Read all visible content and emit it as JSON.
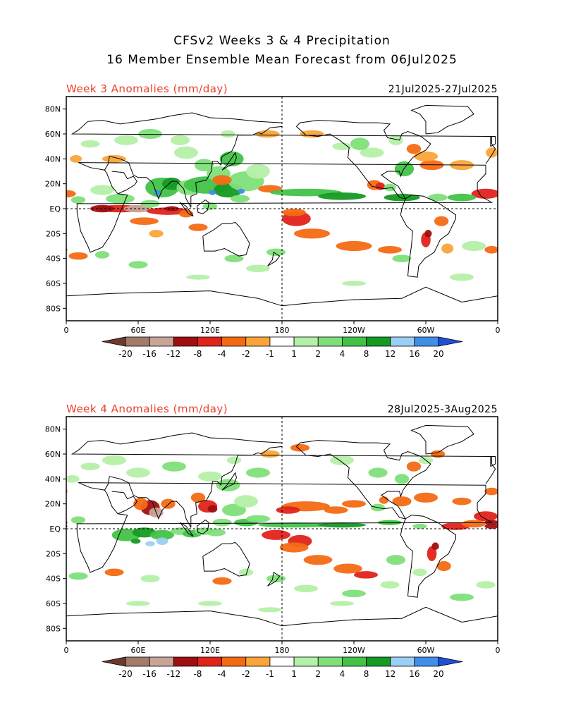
{
  "header": {
    "title_line1": "CFSv2 Weeks 3 & 4 Precipitation",
    "title_line2": "16 Member Ensemble Mean Forecast from 06Jul2025"
  },
  "panels": [
    {
      "label": "Week 3 Anomalies (mm/day)",
      "dates": "21Jul2025-27Jul2025"
    },
    {
      "label": "Week 4 Anomalies (mm/day)",
      "dates": "28Jul2025-3Aug2025"
    }
  ],
  "axes": {
    "lat_labels": [
      "80N",
      "60N",
      "40N",
      "20N",
      "EQ",
      "20S",
      "40S",
      "60S",
      "80S"
    ],
    "lon_labels": [
      "0",
      "60E",
      "120E",
      "180",
      "120W",
      "60W",
      "0"
    ]
  },
  "colorbar": {
    "labels": [
      "-20",
      "-16",
      "-12",
      "-8",
      "-4",
      "-2",
      "-1",
      "1",
      "2",
      "4",
      "8",
      "12",
      "16",
      "20"
    ],
    "colors": [
      "#6b3a2a",
      "#a37b6b",
      "#c9a49a",
      "#a00f0f",
      "#e0231a",
      "#f46a14",
      "#f9a53a",
      "#ffffff",
      "#b5f0a8",
      "#7fe07a",
      "#42c348",
      "#159a23",
      "#9ccff3",
      "#3f8ee8",
      "#1e50d6"
    ]
  }
}
